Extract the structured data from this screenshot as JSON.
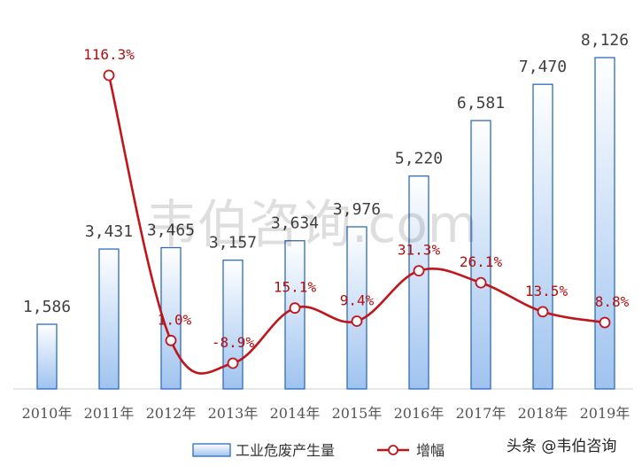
{
  "chart_data": {
    "type": "bar",
    "categories": [
      "2010年",
      "2011年",
      "2012年",
      "2013年",
      "2014年",
      "2015年",
      "2016年",
      "2017年",
      "2018年",
      "2019年"
    ],
    "series": [
      {
        "name": "工业危废产生量",
        "type": "bar",
        "values": [
          1586,
          3431,
          3465,
          3157,
          3634,
          3976,
          5220,
          6581,
          7470,
          8126
        ],
        "labels": [
          "1,586",
          "3,431",
          "3,465",
          "3,157",
          "3,634",
          "3,976",
          "5,220",
          "6,581",
          "7,470",
          "8,126"
        ]
      },
      {
        "name": "增幅",
        "type": "line",
        "values": [
          null,
          116.3,
          1.0,
          -8.9,
          15.1,
          9.4,
          31.3,
          26.1,
          13.5,
          8.8
        ],
        "labels": [
          "",
          "116.3%",
          "1.0%",
          "-8.9%",
          "15.1%",
          "9.4%",
          "31.3%",
          "26.1%",
          "13.5%",
          "8.8%"
        ]
      }
    ],
    "colors": {
      "bar_fill_top": "#ffffff",
      "bar_fill_bottom": "#9fc3ef",
      "bar_stroke": "#2d6bc2",
      "line": "#c0151b"
    },
    "legend_position": "bottom",
    "grid": false
  },
  "watermark": "韦伯咨询.com",
  "brand": "头条 @韦伯咨询"
}
